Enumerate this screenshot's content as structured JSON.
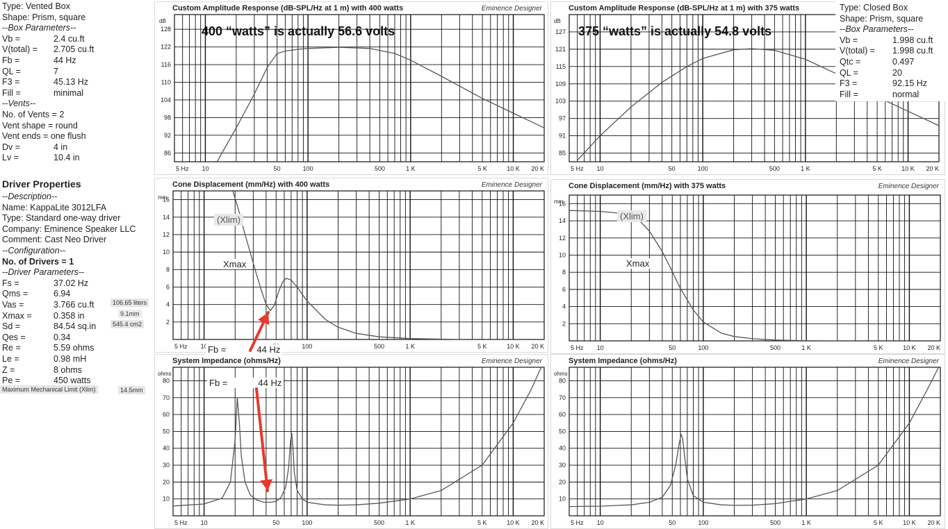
{
  "vented_box": {
    "type": "Type: Vented Box",
    "shape": "Shape: Prism, square",
    "box_header": "--Box Parameters--",
    "box_params": [
      {
        "k": "Vb =",
        "v": "2.4 cu.ft"
      },
      {
        "k": "V(total) =",
        "v": "2.705 cu.ft"
      },
      {
        "k": "Fb =",
        "v": "44 Hz"
      },
      {
        "k": "QL =",
        "v": "7"
      },
      {
        "k": "F3 =",
        "v": "45.13 Hz"
      },
      {
        "k": "Fill =",
        "v": "minimal"
      }
    ],
    "vents_header": "--Vents--",
    "vents": [
      "No. of Vents = 2",
      "Vent shape = round",
      "Vent ends = one flush"
    ],
    "vent_params": [
      {
        "k": "Dv =",
        "v": "4 in"
      },
      {
        "k": "Lv =",
        "v": "10.4 in"
      }
    ]
  },
  "driver": {
    "title": "Driver Properties",
    "desc_header": "--Description--",
    "name": "Name: KappaLite 3012LFA",
    "type": "Type: Standard one-way driver",
    "company": "Company: Eminence Speaker LLC",
    "comment": "Comment: Cast Neo Driver",
    "config_header": "--Configuration--",
    "drivers": "No. of Drivers = 1",
    "params_header": "--Driver Parameters--",
    "params": [
      {
        "k": "Fs =",
        "v": "37.02 Hz"
      },
      {
        "k": "Qms =",
        "v": "6.94"
      },
      {
        "k": "Vas =",
        "v": "3.766 cu.ft"
      },
      {
        "k": "Xmax =",
        "v": "0.358 in"
      },
      {
        "k": "Sd =",
        "v": "84.54 sq.in"
      },
      {
        "k": "Qes =",
        "v": "0.34"
      },
      {
        "k": "Re =",
        "v": "5.59 ohms"
      },
      {
        "k": "Le =",
        "v": "0.98 mH"
      },
      {
        "k": "Z =",
        "v": "8 ohms"
      },
      {
        "k": "Pe =",
        "v": "450 watts"
      }
    ],
    "notes": {
      "vas_liters": "106.65 liters",
      "xmax_mm": "9.1mm",
      "sd_cm2": "545.4 cm2",
      "xlim_label": "Maximum Mechanical Limit (Xlim)",
      "xlim_value": "14.5mm"
    }
  },
  "closed_box": {
    "type": "Type: Closed Box",
    "shape": "Shape: Prism, square",
    "box_header": "--Box Parameters--",
    "params": [
      {
        "k": "Vb =",
        "v": "1.998 cu.ft"
      },
      {
        "k": "V(total) =",
        "v": "1.998 cu.ft"
      },
      {
        "k": "Qtc =",
        "v": "0.497"
      },
      {
        "k": "QL =",
        "v": "20"
      },
      {
        "k": "F3 =",
        "v": "92.15 Hz"
      },
      {
        "k": "Fill =",
        "v": "normal"
      }
    ]
  },
  "annotations": {
    "left_watts": "400 “watts” is actually 56.6 volts",
    "right_watts": "375 “watts” is actually 54.8 volts",
    "xlim": "(Xlim)",
    "xmax": "Xmax",
    "fb_label": "Fb =",
    "fb_value": "44 Hz",
    "arrow_color": "#e8392f"
  },
  "source": "Eminence Designer",
  "chart_data": [
    {
      "id": "amp400",
      "type": "line",
      "title": "Custom Amplitude Response (dB-SPL/Hz at 1 m) with 400 watts",
      "ylabel": "dB",
      "x_scale": "log",
      "xlim": [
        5,
        20000
      ],
      "ylim": [
        83,
        133
      ],
      "yticks": [
        86,
        92,
        98,
        104,
        110,
        116,
        122,
        128
      ],
      "xtick_labels": [
        "5 Hz",
        "10",
        "50",
        "100",
        "500",
        "1 K",
        "5 K",
        "10 K",
        "20 K"
      ],
      "x": [
        13,
        20,
        30,
        40,
        50,
        60,
        80,
        100,
        200,
        400,
        700,
        1000,
        2000,
        5000,
        10000,
        20000
      ],
      "y": [
        83,
        94.5,
        106,
        115,
        119.8,
        120.6,
        121.2,
        121.5,
        121.9,
        121.5,
        119.8,
        117.5,
        112,
        104.5,
        99.5,
        94.5
      ],
      "grid": true
    },
    {
      "id": "amp375",
      "type": "line",
      "title": "Custom Amplitude Response (dB-SPL/Hz at 1 m) with 375 watts",
      "ylabel": "dB",
      "x_scale": "log",
      "xlim": [
        5,
        20000
      ],
      "ylim": [
        82,
        133
      ],
      "yticks": [
        85,
        91,
        97,
        103,
        109,
        115,
        121,
        127
      ],
      "xtick_labels": [
        "5 Hz",
        "10",
        "50",
        "100",
        "500",
        "1 K",
        "5 K",
        "10 K",
        "20 K"
      ],
      "x": [
        6,
        10,
        20,
        40,
        70,
        100,
        200,
        300,
        500,
        1000,
        2000,
        5000,
        10000,
        20000
      ],
      "y": [
        82.5,
        91,
        101,
        109.5,
        115,
        117.8,
        120.8,
        121.2,
        120.6,
        117.5,
        112.5,
        104.5,
        99.5,
        94.5
      ],
      "grid": true
    },
    {
      "id": "disp400",
      "type": "line",
      "title": "Cone Displacement (mm/Hz) with 400 watts",
      "ylabel": "mm",
      "x_scale": "log",
      "xlim": [
        5,
        20000
      ],
      "ylim": [
        0,
        17
      ],
      "yticks": [
        2,
        4,
        6,
        8,
        10,
        12,
        14,
        16
      ],
      "xtick_labels": [
        "5 Hz",
        "10",
        "50",
        "100",
        "500",
        "1 K",
        "5 K",
        "10 K",
        "20 K"
      ],
      "x": [
        19,
        22,
        25,
        28,
        32,
        36,
        40,
        44,
        48,
        53,
        58,
        63,
        70,
        80,
        100,
        150,
        200,
        300,
        500,
        1000,
        3000
      ],
      "y": [
        17,
        14.5,
        12,
        10,
        7.6,
        5.6,
        4,
        3.3,
        3.9,
        5.5,
        6.6,
        7,
        6.8,
        6,
        4.4,
        2.3,
        1.4,
        0.7,
        0.3,
        0.1,
        0
      ],
      "grid": true
    },
    {
      "id": "disp375",
      "type": "line",
      "title": "Cone Displacement (mm/Hz) with 375 watts",
      "ylabel": "mm",
      "x_scale": "log",
      "xlim": [
        5,
        20000
      ],
      "ylim": [
        0,
        17
      ],
      "yticks": [
        2,
        4,
        6,
        8,
        10,
        12,
        14,
        16
      ],
      "xtick_labels": [
        "5 Hz",
        "10",
        "50",
        "100",
        "500",
        "1 K",
        "5 K",
        "10 K",
        "20 K"
      ],
      "x": [
        5,
        10,
        15,
        20,
        25,
        30,
        40,
        50,
        60,
        80,
        100,
        150,
        200,
        300,
        500,
        1000,
        2000
      ],
      "y": [
        15.2,
        15.1,
        14.9,
        14.5,
        13.8,
        12.8,
        10.4,
        8.1,
        6.1,
        3.6,
        2.2,
        0.9,
        0.5,
        0.25,
        0.1,
        0.02,
        0
      ],
      "grid": true
    },
    {
      "id": "imp400",
      "type": "line",
      "title": "System Impedance (ohms/Hz)",
      "ylabel": "ohms",
      "x_scale": "log",
      "xlim": [
        5,
        20000
      ],
      "ylim": [
        0,
        88
      ],
      "yticks": [
        10,
        20,
        30,
        40,
        50,
        60,
        70,
        80
      ],
      "xtick_labels": [
        "5 Hz",
        "10",
        "50",
        "100",
        "500",
        "1 K",
        "5 K",
        "10 K",
        "20 K"
      ],
      "x": [
        5,
        10,
        15,
        18,
        20,
        21,
        22,
        23,
        25,
        28,
        32,
        38,
        44,
        50,
        56,
        62,
        66,
        69,
        71,
        73,
        75,
        80,
        90,
        100,
        150,
        200,
        300,
        500,
        1000,
        2000,
        5000,
        10000,
        15000,
        20000
      ],
      "y": [
        5.8,
        7,
        10.5,
        20,
        45,
        70,
        55,
        35,
        20,
        12.5,
        9.5,
        8,
        8,
        8.5,
        11,
        17,
        28,
        44,
        49,
        40,
        26,
        15,
        10,
        8,
        6.5,
        6.3,
        6.5,
        7.5,
        10,
        15,
        30,
        55,
        75,
        92
      ],
      "grid": true
    },
    {
      "id": "imp375",
      "type": "line",
      "title": "System Impedance (ohms/Hz)",
      "ylabel": "ohms",
      "x_scale": "log",
      "xlim": [
        5,
        20000
      ],
      "ylim": [
        0,
        88
      ],
      "yticks": [
        10,
        20,
        30,
        40,
        50,
        60,
        70,
        80
      ],
      "xtick_labels": [
        "5 Hz",
        "10",
        "50",
        "100",
        "500",
        "1 K",
        "5 K",
        "10 K",
        "20 K"
      ],
      "x": [
        5,
        10,
        20,
        30,
        40,
        48,
        54,
        58,
        61,
        63,
        66,
        70,
        80,
        100,
        150,
        200,
        300,
        500,
        1000,
        2000,
        5000,
        10000,
        15000,
        20000
      ],
      "y": [
        5.5,
        5.7,
        6.5,
        8,
        11,
        18,
        30,
        42,
        48,
        46,
        35,
        22,
        12,
        8,
        6.5,
        6.2,
        6.3,
        7.2,
        10,
        15,
        30,
        55,
        75,
        90
      ],
      "grid": true
    }
  ]
}
